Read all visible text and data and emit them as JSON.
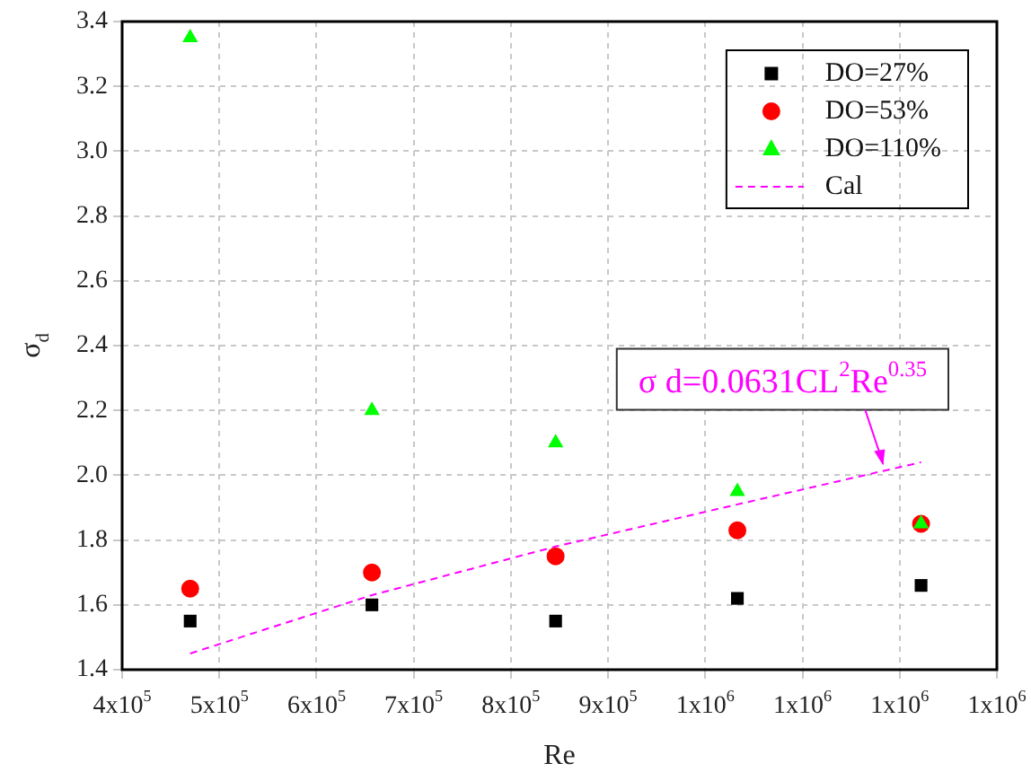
{
  "chart_data": {
    "type": "scatter",
    "xlabel": "Re",
    "ylabel": "σ$_{d}$",
    "x": [
      470000,
      657000,
      846000,
      1033000,
      1222000
    ],
    "series": [
      {
        "name": "DO=27%",
        "color": "#000000",
        "marker": "square",
        "values": [
          1.55,
          1.6,
          1.55,
          1.62,
          1.66
        ]
      },
      {
        "name": "DO=53%",
        "color": "#ff0000",
        "marker": "circle",
        "values": [
          1.65,
          1.7,
          1.75,
          1.83,
          1.85
        ]
      },
      {
        "name": "DO=110%",
        "color": "#00ff00",
        "marker": "triangle",
        "values": [
          3.35,
          2.2,
          2.1,
          1.95,
          1.85
        ]
      },
      {
        "name": "Cal",
        "type": "line",
        "color": "#ff00ff",
        "marker": "none",
        "line_style": "dashed",
        "values": [
          1.45,
          1.63,
          1.78,
          1.91,
          2.04
        ]
      }
    ],
    "xlim": [
      400000,
      1300000
    ],
    "xticks": [
      {
        "value": 400000,
        "label": "4x10$^{5}$"
      },
      {
        "value": 500000,
        "label": "5x10$^{5}$"
      },
      {
        "value": 600000,
        "label": "6x10$^{5}$"
      },
      {
        "value": 700000,
        "label": "7x10$^{5}$"
      },
      {
        "value": 800000,
        "label": "8x10$^{5}$"
      },
      {
        "value": 900000,
        "label": "9x10$^{5}$"
      },
      {
        "value": 1000000,
        "label": "1x10$^{6}$"
      },
      {
        "value": 1100000,
        "label": "1x10$^{6}$"
      },
      {
        "value": 1200000,
        "label": "1x10$^{6}$"
      },
      {
        "value": 1300000,
        "label": "1x10$^{6}$"
      }
    ],
    "ylim": [
      1.4,
      3.4
    ],
    "yticks": [
      1.4,
      1.6,
      1.8,
      {
        "value": 2.0,
        "label": "2.0"
      },
      2.2,
      2.4,
      2.6,
      2.8,
      {
        "value": 3.0,
        "label": "3.0"
      },
      3.2,
      3.4
    ],
    "grid": true,
    "legend": "top right",
    "annotations": [
      {
        "text": "σ d=0.0631CL$^{2}$Re$^{0.35}$",
        "x": 1183000,
        "y": 2.03
      }
    ]
  }
}
